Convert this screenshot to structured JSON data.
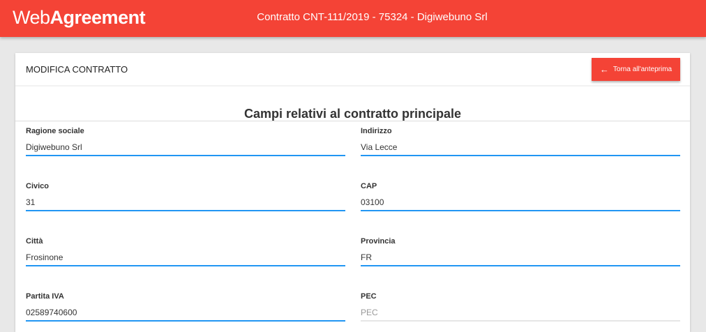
{
  "header": {
    "logo_light": "Web",
    "logo_bold": "Agreement",
    "title": "Contratto CNT-111/2019 - 75324 - Digiwebuno Srl"
  },
  "card": {
    "title": "MODIFICA CONTRATTO",
    "back_button": "Torna all'anteprima",
    "back_icon": "arrow-left-icon",
    "section_title": "Campi relativi al contratto principale"
  },
  "fields": [
    {
      "label": "Ragione sociale",
      "value": "Digiwebuno Srl",
      "placeholder": ""
    },
    {
      "label": "Indirizzo",
      "value": "Via Lecce",
      "placeholder": ""
    },
    {
      "label": "Civico",
      "value": "31",
      "placeholder": ""
    },
    {
      "label": "CAP",
      "value": "03100",
      "placeholder": ""
    },
    {
      "label": "Città",
      "value": "Frosinone",
      "placeholder": ""
    },
    {
      "label": "Provincia",
      "value": "FR",
      "placeholder": ""
    },
    {
      "label": "Partita IVA",
      "value": "02589740600",
      "placeholder": ""
    },
    {
      "label": "PEC",
      "value": "",
      "placeholder": "PEC"
    }
  ],
  "colors": {
    "brand": "#f44336",
    "input_active": "#2196f3"
  }
}
